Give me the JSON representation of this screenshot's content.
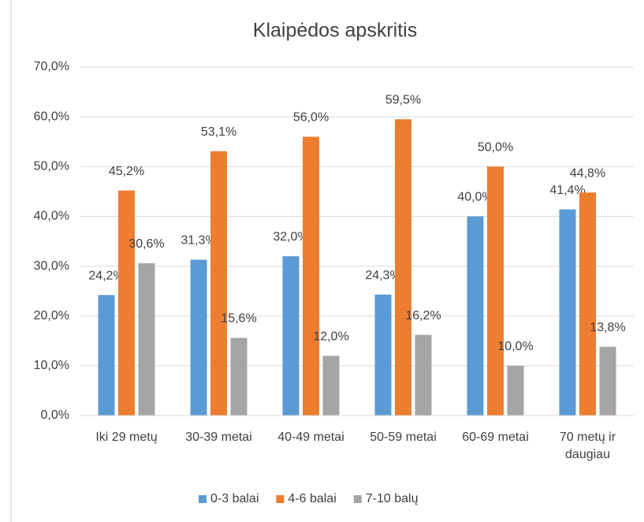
{
  "chart_data": {
    "type": "bar",
    "title": "Klaipėdos apskritis",
    "categories": [
      "Iki 29 metų",
      "30-39 metai",
      "40-49 metai",
      "50-59 metai",
      "60-69 metai",
      "70 metų ir daugiau"
    ],
    "series": [
      {
        "name": "0-3 balai",
        "color": "#5b9bd5",
        "values": [
          24.2,
          31.3,
          32.0,
          24.3,
          40.0,
          41.4
        ],
        "value_labels": [
          "24,2%",
          "31,3%",
          "32,0%",
          "24,3%",
          "40,0%",
          "41,4%"
        ]
      },
      {
        "name": "4-6 balai",
        "color": "#ed7d31",
        "values": [
          45.2,
          53.1,
          56.0,
          59.5,
          50.0,
          44.8
        ],
        "value_labels": [
          "45,2%",
          "53,1%",
          "56,0%",
          "59,5%",
          "50,0%",
          "44,8%"
        ]
      },
      {
        "name": "7-10 balų",
        "color": "#a5a5a5",
        "values": [
          30.6,
          15.6,
          12.0,
          16.2,
          10.0,
          13.8
        ],
        "value_labels": [
          "30,6%",
          "15,6%",
          "12,0%",
          "16,2%",
          "10,0%",
          "13,8%"
        ]
      }
    ],
    "ylim": [
      0,
      70
    ],
    "yticks": [
      {
        "value": 0,
        "label": "0,0%"
      },
      {
        "value": 10,
        "label": "10,0%"
      },
      {
        "value": 20,
        "label": "20,0%"
      },
      {
        "value": 30,
        "label": "30,0%"
      },
      {
        "value": 40,
        "label": "40,0%"
      },
      {
        "value": 50,
        "label": "50,0%"
      },
      {
        "value": 60,
        "label": "60,0%"
      },
      {
        "value": 70,
        "label": "70,0%"
      }
    ],
    "grid": true,
    "legend": "bottom"
  }
}
